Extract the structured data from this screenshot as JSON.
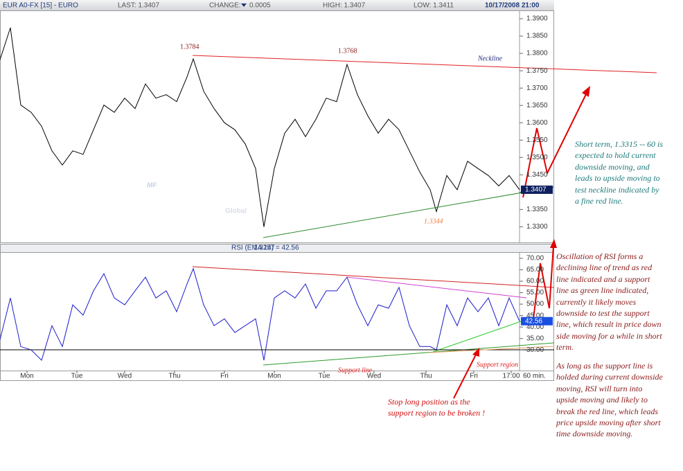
{
  "header": {
    "symbol": "EUR A0-FX [15] - EURO",
    "last": "LAST: 1.3407",
    "change_label": "CHANGE:",
    "change": "0.0005",
    "high": "HIGH: 1.3407",
    "low": "LOW: 1.3411",
    "datetime": "10/17/2008 21:00"
  },
  "chart_data": [
    {
      "type": "line",
      "color": "#000000",
      "watermark": [
        "MF",
        "Global"
      ],
      "annotations": [
        "1.3784",
        "1.3768",
        "Neckline",
        "1.3344"
      ],
      "x": [
        0,
        5,
        10,
        15,
        20,
        25,
        30,
        35,
        40,
        45,
        50,
        55,
        60,
        65,
        70,
        75,
        80,
        85,
        90,
        93,
        98,
        103,
        108,
        113,
        118,
        123,
        127,
        132,
        137,
        142,
        147,
        152,
        157,
        162,
        167,
        172,
        177,
        182,
        187,
        192,
        197,
        202,
        207,
        210,
        215,
        220,
        225,
        230,
        235,
        240,
        245,
        250
      ],
      "values": [
        1.3782,
        1.3874,
        1.3651,
        1.363,
        1.359,
        1.3519,
        1.3478,
        1.3519,
        1.3509,
        1.358,
        1.3651,
        1.363,
        1.3671,
        1.3641,
        1.3712,
        1.3671,
        1.3681,
        1.3661,
        1.3732,
        1.3784,
        1.3691,
        1.3641,
        1.36,
        1.358,
        1.3539,
        1.3468,
        1.33,
        1.3468,
        1.357,
        1.361,
        1.356,
        1.361,
        1.3671,
        1.3661,
        1.3768,
        1.3681,
        1.362,
        1.357,
        1.361,
        1.358,
        1.3519,
        1.3458,
        1.3407,
        1.3344,
        1.3448,
        1.3407,
        1.3489,
        1.3468,
        1.3448,
        1.3418,
        1.3448,
        1.3407
      ],
      "xlim": [
        0,
        250
      ],
      "ylim": [
        1.3255,
        1.3924
      ],
      "yticks": [
        {
          "value": 1.33,
          "label": "1.3300"
        },
        {
          "value": 1.335,
          "label": "1.3350"
        },
        {
          "value": 1.34,
          "label": "1.3400"
        },
        {
          "value": 1.345,
          "label": "1.3450"
        },
        {
          "value": 1.35,
          "label": "1.3500"
        },
        {
          "value": 1.355,
          "label": "1.3550"
        },
        {
          "value": 1.36,
          "label": "1.3600"
        },
        {
          "value": 1.365,
          "label": "1.3650"
        },
        {
          "value": 1.37,
          "label": "1.3700"
        },
        {
          "value": 1.375,
          "label": "1.3750"
        },
        {
          "value": 1.38,
          "label": "1.3800"
        },
        {
          "value": 1.385,
          "label": "1.3850"
        },
        {
          "value": 1.39,
          "label": "1.3900"
        }
      ]
    },
    {
      "type": "line",
      "color": "#1a1acc",
      "title": "RSI (EMA 14) = 42.56",
      "low_annotation": "1.3257",
      "x": [
        0,
        5,
        10,
        15,
        20,
        25,
        30,
        35,
        40,
        45,
        50,
        55,
        60,
        65,
        70,
        75,
        80,
        85,
        90,
        93,
        98,
        103,
        108,
        113,
        118,
        123,
        127,
        132,
        137,
        142,
        147,
        152,
        157,
        162,
        167,
        172,
        177,
        182,
        187,
        192,
        197,
        202,
        207,
        210,
        215,
        220,
        225,
        230,
        235,
        240,
        245,
        250
      ],
      "values": [
        34.5,
        52.7,
        31.5,
        30,
        25.5,
        40.6,
        31.5,
        49.7,
        45.2,
        55.8,
        63.3,
        52.7,
        49.7,
        55.8,
        61.8,
        52.7,
        55.8,
        46.7,
        58.8,
        65.5,
        49.7,
        40.6,
        43.6,
        37.6,
        40.6,
        43.6,
        25.5,
        52.7,
        55.8,
        52.7,
        58.8,
        48.2,
        55.8,
        55.8,
        61.8,
        49.7,
        40.6,
        49.7,
        48.2,
        57.3,
        40.6,
        31.5,
        31.5,
        30,
        49.7,
        40.6,
        52.7,
        46.7,
        52.7,
        40.6,
        52.7,
        42.56
      ],
      "xlim": [
        0,
        250
      ],
      "ylim": [
        21,
        72.4
      ],
      "yticks": [
        {
          "value": 30,
          "label": "30.00"
        },
        {
          "value": 35,
          "label": "35.00"
        },
        {
          "value": 40,
          "label": "40.00"
        },
        {
          "value": 45,
          "label": "45.00"
        },
        {
          "value": 50,
          "label": "50.00"
        },
        {
          "value": 55,
          "label": "55.00"
        },
        {
          "value": 60,
          "label": "60.00"
        },
        {
          "value": 65,
          "label": "65.00"
        },
        {
          "value": 70,
          "label": "70.00"
        }
      ],
      "xticks": [
        {
          "value": 13,
          "label": "Mon"
        },
        {
          "value": 37,
          "label": "Tue"
        },
        {
          "value": 60,
          "label": "Wed"
        },
        {
          "value": 84,
          "label": "Thu"
        },
        {
          "value": 108,
          "label": "Fri"
        },
        {
          "value": 132,
          "label": "Mon"
        },
        {
          "value": 156,
          "label": "Tue"
        },
        {
          "value": 180,
          "label": "Wed"
        },
        {
          "value": 205,
          "label": "Thu"
        },
        {
          "value": 228,
          "label": "Fri"
        },
        {
          "value": 246,
          "label": "17:00"
        }
      ],
      "x_label": "60 min.",
      "annotations": [
        "Support line",
        "Support region"
      ]
    }
  ],
  "notes": {
    "short_term": [
      "Short term, 1.3315 -- 60 is",
      "expected to hold current",
      "downside moving, and",
      "leads to upside moving to",
      "test neckline indicated by",
      "a fine red line."
    ],
    "rsi": [
      "Oscillation of RSI forms a",
      "declining line of trend as red",
      "line indicated and a support",
      "line as green line indicated,",
      "currently it likely moves",
      "downside to test the support",
      "line, which result in price down",
      "side moving for a while in short",
      "term."
    ],
    "outlook": [
      "As long as the support line is",
      "holded during current downside",
      "moving,  RSI will turn into",
      "upside moving and likely to",
      "break the red line, which leads",
      "price upside moving after short",
      "time downside moving."
    ],
    "stop": [
      "Stop long position as the",
      "support region to be broken !"
    ]
  }
}
